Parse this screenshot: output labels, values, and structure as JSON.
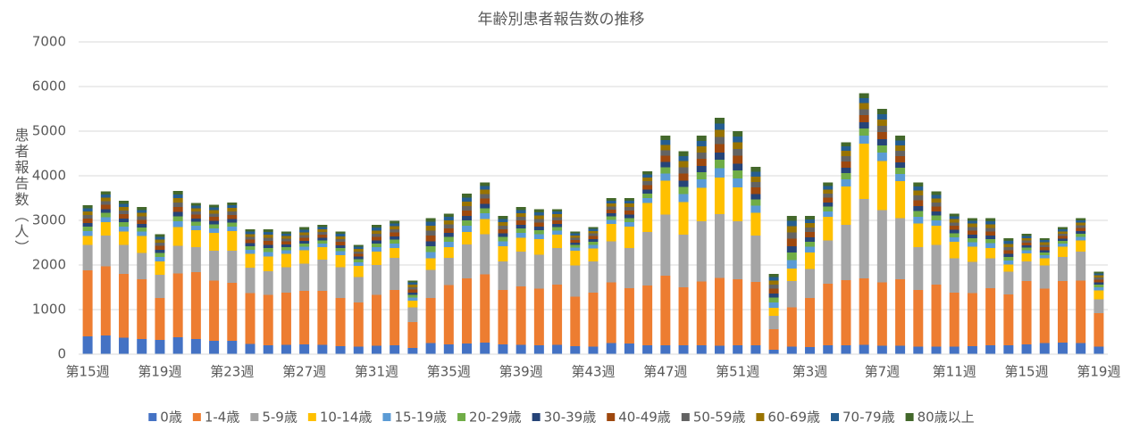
{
  "chart_data": {
    "type": "stacked-bar",
    "title": "年齢別患者報告数の推移",
    "y_label": "患者報告数（人）",
    "categories": [
      "第15週",
      null,
      null,
      null,
      "第19週",
      null,
      null,
      null,
      "第23週",
      null,
      null,
      null,
      "第27週",
      null,
      null,
      null,
      "第31週",
      null,
      null,
      null,
      "第35週",
      null,
      null,
      null,
      "第39週",
      null,
      null,
      null,
      "第43週",
      null,
      null,
      null,
      "第47週",
      null,
      null,
      null,
      "第51週",
      null,
      null,
      null,
      "第3週",
      null,
      null,
      null,
      "第7週",
      null,
      null,
      null,
      "第11週",
      null,
      null,
      null,
      "第15週",
      null,
      null,
      null,
      "第19週"
    ],
    "ylim": [
      0,
      7000
    ],
    "yticks": [
      0,
      1000,
      2000,
      3000,
      4000,
      5000,
      6000,
      7000
    ],
    "grid": true,
    "legend": "bottom",
    "series": [
      {
        "name": "0歳",
        "color": "#4472c4",
        "values": [
          400,
          420,
          370,
          340,
          320,
          380,
          340,
          300,
          300,
          230,
          200,
          210,
          220,
          210,
          180,
          170,
          190,
          200,
          140,
          250,
          220,
          240,
          260,
          220,
          210,
          200,
          210,
          180,
          170,
          250,
          240,
          200,
          200,
          200,
          200,
          190,
          200,
          200,
          100,
          170,
          160,
          200,
          200,
          210,
          190,
          190,
          170,
          170,
          170,
          180,
          200,
          200,
          220,
          250,
          260,
          250,
          170
        ]
      },
      {
        "name": "1-4歳",
        "color": "#ed7d31",
        "values": [
          1480,
          1550,
          1430,
          1340,
          940,
          1430,
          1500,
          1350,
          1300,
          1140,
          1130,
          1170,
          1200,
          1210,
          1080,
          990,
          1140,
          1240,
          580,
          1010,
          1330,
          1460,
          1530,
          1220,
          1310,
          1270,
          1350,
          1110,
          1210,
          1360,
          1240,
          1340,
          1560,
          1300,
          1430,
          1520,
          1480,
          1420,
          460,
          880,
          1100,
          1380,
          1460,
          1490,
          1420,
          1490,
          1270,
          1390,
          1210,
          1190,
          1280,
          1140,
          1420,
          1220,
          1380,
          1400,
          750
        ]
      },
      {
        "name": "5-9歳",
        "color": "#a5a5a5",
        "values": [
          570,
          690,
          650,
          590,
          520,
          620,
          560,
          670,
          720,
          570,
          530,
          570,
          610,
          700,
          690,
          570,
          670,
          720,
          330,
          630,
          610,
          760,
          900,
          640,
          780,
          760,
          820,
          700,
          700,
          920,
          900,
          1200,
          1370,
          1180,
          1350,
          1430,
          1300,
          1040,
          300,
          590,
          650,
          970,
          1240,
          1780,
          1620,
          1370,
          960,
          890,
          770,
          700,
          670,
          510,
          440,
          520,
          540,
          650,
          310
        ]
      },
      {
        "name": "10-14歳",
        "color": "#ffc000",
        "values": [
          200,
          300,
          300,
          380,
          300,
          420,
          380,
          400,
          440,
          310,
          330,
          300,
          300,
          280,
          270,
          250,
          300,
          220,
          150,
          260,
          240,
          280,
          340,
          340,
          310,
          350,
          300,
          330,
          290,
          390,
          480,
          650,
          760,
          730,
          750,
          820,
          760,
          510,
          180,
          280,
          370,
          530,
          860,
          1240,
          1100,
          830,
          530,
          430,
          370,
          340,
          230,
          160,
          180,
          160,
          230,
          250,
          200
        ]
      },
      {
        "name": "15-19歳",
        "color": "#5b9bd5",
        "values": [
          110,
          110,
          110,
          100,
          100,
          130,
          100,
          100,
          100,
          90,
          100,
          80,
          80,
          80,
          90,
          80,
          100,
          100,
          70,
          140,
          120,
          140,
          130,
          110,
          110,
          110,
          90,
          70,
          80,
          90,
          100,
          110,
          160,
          180,
          190,
          210,
          200,
          160,
          120,
          190,
          130,
          120,
          160,
          180,
          190,
          160,
          150,
          120,
          100,
          100,
          110,
          90,
          70,
          70,
          70,
          80,
          70
        ]
      },
      {
        "name": "20-29歳",
        "color": "#70ad47",
        "values": [
          100,
          100,
          100,
          90,
          90,
          110,
          90,
          90,
          90,
          80,
          90,
          70,
          70,
          70,
          70,
          70,
          80,
          90,
          60,
          130,
          110,
          120,
          110,
          100,
          100,
          90,
          80,
          60,
          70,
          80,
          90,
          100,
          140,
          160,
          160,
          190,
          180,
          140,
          110,
          170,
          110,
          110,
          140,
          160,
          160,
          140,
          130,
          110,
          90,
          90,
          90,
          80,
          60,
          60,
          60,
          70,
          60
        ]
      },
      {
        "name": "30-39歳",
        "color": "#264478",
        "values": [
          80,
          80,
          80,
          80,
          70,
          100,
          70,
          80,
          80,
          70,
          70,
          60,
          60,
          60,
          60,
          60,
          70,
          70,
          50,
          110,
          90,
          100,
          100,
          80,
          80,
          80,
          70,
          50,
          60,
          70,
          80,
          90,
          120,
          140,
          140,
          160,
          150,
          120,
          90,
          140,
          100,
          90,
          120,
          140,
          140,
          120,
          110,
          90,
          80,
          80,
          80,
          70,
          50,
          50,
          50,
          60,
          50
        ]
      },
      {
        "name": "40-49歳",
        "color": "#9e480e",
        "values": [
          100,
          100,
          100,
          90,
          90,
          110,
          90,
          90,
          90,
          80,
          90,
          70,
          70,
          70,
          80,
          60,
          80,
          90,
          70,
          130,
          100,
          120,
          120,
          90,
          100,
          90,
          80,
          60,
          70,
          80,
          90,
          100,
          140,
          160,
          160,
          190,
          180,
          150,
          110,
          170,
          120,
          110,
          140,
          160,
          160,
          140,
          130,
          110,
          90,
          90,
          90,
          80,
          60,
          70,
          60,
          70,
          60
        ]
      },
      {
        "name": "50-59歳",
        "color": "#636363",
        "values": [
          80,
          80,
          80,
          80,
          70,
          100,
          70,
          70,
          80,
          60,
          70,
          60,
          60,
          60,
          60,
          50,
          70,
          70,
          50,
          110,
          90,
          100,
          100,
          80,
          80,
          80,
          70,
          50,
          60,
          70,
          80,
          90,
          120,
          140,
          140,
          160,
          150,
          120,
          90,
          140,
          100,
          90,
          120,
          130,
          140,
          120,
          110,
          90,
          70,
          80,
          80,
          70,
          50,
          50,
          50,
          60,
          50
        ]
      },
      {
        "name": "60-69歳",
        "color": "#997300",
        "values": [
          80,
          80,
          80,
          80,
          70,
          100,
          70,
          80,
          80,
          60,
          70,
          60,
          60,
          60,
          60,
          60,
          70,
          70,
          60,
          110,
          90,
          100,
          100,
          80,
          80,
          80,
          70,
          50,
          50,
          70,
          80,
          80,
          120,
          140,
          140,
          160,
          150,
          120,
          90,
          140,
          100,
          90,
          120,
          140,
          140,
          120,
          110,
          90,
          80,
          80,
          80,
          70,
          50,
          60,
          50,
          60,
          50
        ]
      },
      {
        "name": "70-79歳",
        "color": "#255e91",
        "values": [
          70,
          70,
          70,
          60,
          60,
          80,
          60,
          60,
          60,
          60,
          60,
          50,
          60,
          50,
          60,
          50,
          70,
          60,
          50,
          90,
          80,
          90,
          80,
          70,
          70,
          70,
          60,
          50,
          50,
          60,
          60,
          70,
          110,
          110,
          120,
          140,
          130,
          110,
          80,
          120,
          80,
          80,
          100,
          110,
          120,
          110,
          90,
          80,
          60,
          60,
          70,
          70,
          50,
          50,
          50,
          50,
          40
        ]
      },
      {
        "name": "80歳以上",
        "color": "#43682b",
        "values": [
          70,
          70,
          70,
          70,
          60,
          80,
          60,
          60,
          60,
          50,
          60,
          50,
          60,
          50,
          50,
          40,
          60,
          60,
          40,
          80,
          70,
          90,
          80,
          70,
          70,
          70,
          50,
          40,
          40,
          60,
          60,
          70,
          100,
          110,
          120,
          130,
          120,
          110,
          70,
          110,
          80,
          80,
          90,
          110,
          120,
          110,
          90,
          80,
          60,
          60,
          70,
          60,
          50,
          40,
          50,
          50,
          40
        ]
      }
    ]
  }
}
